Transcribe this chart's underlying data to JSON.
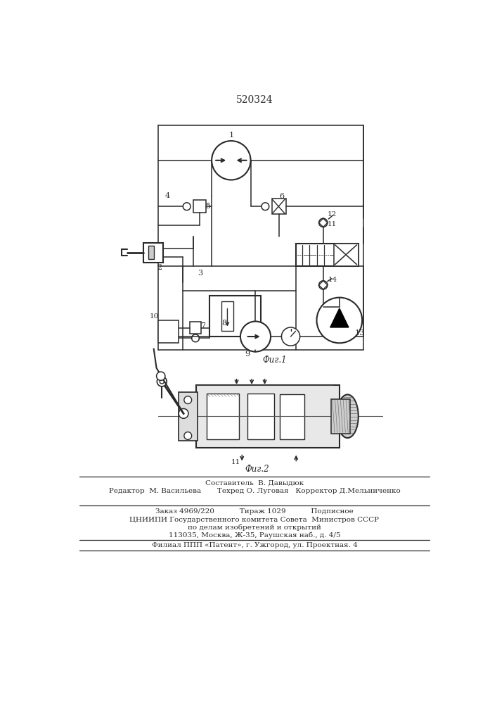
{
  "patent_number": "520324",
  "fig1_label": "Фиг.1",
  "fig2_label": "Фиг.2",
  "footer": {
    "sostavitel": "Составитель  В. Давыдюк",
    "redaktor": "Редактор  М. Васильева",
    "tekhred": "Техред О. Луговая",
    "korrektor": "Корректор Д.Мельниченко",
    "zakaz": "Заказ 4969/220",
    "tirazh": "Тираж 1029",
    "podpisnoe": "Подписное",
    "tsniipi": "ЦНИИПИ Государственного комитета Совета  Министров СССР",
    "po_delam": "по делам изобретений и открытий",
    "address": "113035, Москва, Ж-35, Раушская наб., д. 4/5",
    "filial": "Филиал ППП «Патент», г. Ужгород, ул. Проектная. 4"
  },
  "bg_color": "#ffffff",
  "line_color": "#2a2a2a",
  "text_color": "#2a2a2a"
}
